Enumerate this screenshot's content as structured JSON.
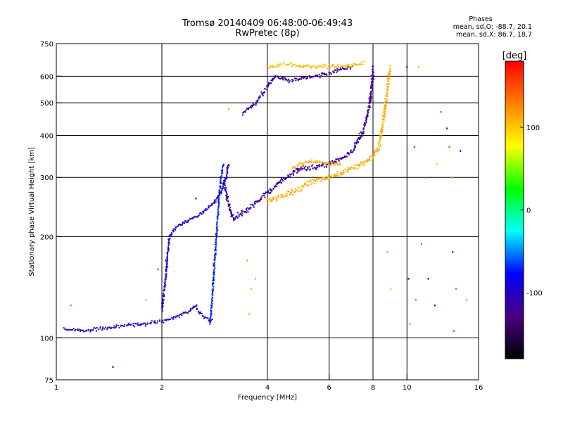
{
  "chart_data": {
    "type": "scatter",
    "title": "Tromsø 20140409 06:48:00-06:49:43",
    "subtitle": "RwPretec (8p)",
    "xlabel": "Frequency [MHz]",
    "ylabel": "Stationary phase Virtual Height [km]",
    "x_scale": "log",
    "y_scale": "log",
    "xlim": [
      1,
      16
    ],
    "ylim": [
      75,
      750
    ],
    "x_ticks": [
      1,
      2,
      4,
      6,
      8,
      10,
      16
    ],
    "y_ticks": [
      75,
      100,
      200,
      300,
      400,
      500,
      600,
      750
    ],
    "grid": true,
    "stats": {
      "header": "Phases",
      "line1": "mean, sd,O: -88.7, 20.1",
      "line2": "mean, sd,X:  86.7, 18.7"
    },
    "colorbar": {
      "label": "[deg]",
      "ticks": [
        100,
        0,
        -100
      ],
      "range": [
        -180,
        180
      ],
      "colors": [
        "#000000",
        "#4b0082",
        "#0000ff",
        "#00ffff",
        "#00ff00",
        "#ffff00",
        "#ff8000",
        "#ff0000"
      ]
    },
    "traces": [
      {
        "name": "",
        "phase": -105,
        "spread": 0.012,
        "density": 2.2,
        "points": [
          [
            1.05,
            106
          ],
          [
            1.2,
            105
          ],
          [
            1.4,
            107
          ],
          [
            1.6,
            109
          ],
          [
            1.8,
            110
          ],
          [
            2.0,
            112
          ],
          [
            2.2,
            115
          ],
          [
            2.3,
            118
          ],
          [
            2.4,
            120
          ],
          [
            2.5,
            125
          ],
          [
            2.55,
            119
          ],
          [
            2.65,
            115
          ],
          [
            2.8,
            113
          ]
        ]
      },
      {
        "name": "",
        "phase": -70,
        "spread": 0.012,
        "density": 2.5,
        "points": [
          [
            2.75,
            110
          ],
          [
            2.8,
            140
          ],
          [
            2.85,
            190
          ],
          [
            2.9,
            250
          ],
          [
            2.95,
            300
          ],
          [
            3.0,
            330
          ]
        ]
      },
      {
        "name": "",
        "phase": -95,
        "spread": 0.012,
        "density": 2.5,
        "points": [
          [
            2.0,
            120
          ],
          [
            2.05,
            150
          ],
          [
            2.1,
            200
          ],
          [
            2.2,
            215
          ],
          [
            2.4,
            225
          ],
          [
            2.6,
            235
          ],
          [
            2.8,
            250
          ],
          [
            2.95,
            270
          ],
          [
            3.05,
            300
          ],
          [
            3.1,
            330
          ]
        ]
      },
      {
        "name": "",
        "phase": -115,
        "spread": 0.018,
        "density": 3.2,
        "points": [
          [
            3.0,
            290
          ],
          [
            3.1,
            250
          ],
          [
            3.2,
            225
          ],
          [
            3.5,
            240
          ],
          [
            4.0,
            270
          ],
          [
            4.5,
            300
          ],
          [
            5.0,
            320
          ],
          [
            5.5,
            320
          ],
          [
            6.0,
            330
          ],
          [
            6.5,
            340
          ],
          [
            7.0,
            360
          ],
          [
            7.5,
            410
          ],
          [
            7.8,
            480
          ],
          [
            7.95,
            560
          ],
          [
            8.0,
            640
          ]
        ]
      },
      {
        "name": "",
        "phase": 110,
        "spread": 0.02,
        "density": 3.0,
        "points": [
          [
            4.0,
            255
          ],
          [
            4.5,
            265
          ],
          [
            5.0,
            280
          ],
          [
            5.5,
            295
          ],
          [
            6.0,
            300
          ],
          [
            6.5,
            310
          ],
          [
            7.0,
            320
          ],
          [
            7.5,
            330
          ],
          [
            8.0,
            345
          ],
          [
            8.3,
            370
          ],
          [
            8.5,
            420
          ],
          [
            8.7,
            500
          ],
          [
            8.85,
            580
          ],
          [
            8.95,
            640
          ]
        ]
      },
      {
        "name": "",
        "phase": 108,
        "spread": 0.014,
        "density": 2.5,
        "points": [
          [
            4.7,
            320
          ],
          [
            5.0,
            330
          ],
          [
            5.5,
            335
          ],
          [
            6.0,
            330
          ],
          [
            6.5,
            330
          ]
        ]
      },
      {
        "name": "",
        "phase": -115,
        "spread": 0.014,
        "density": 2.5,
        "points": [
          [
            3.4,
            465
          ],
          [
            3.7,
            500
          ],
          [
            4.0,
            560
          ],
          [
            4.2,
            600
          ],
          [
            4.6,
            580
          ],
          [
            5.0,
            590
          ],
          [
            5.5,
            600
          ],
          [
            6.0,
            610
          ],
          [
            6.5,
            630
          ],
          [
            7.0,
            640
          ]
        ]
      },
      {
        "name": "",
        "phase": 105,
        "spread": 0.014,
        "density": 2.2,
        "points": [
          [
            4.0,
            640
          ],
          [
            4.5,
            650
          ],
          [
            5.5,
            640
          ],
          [
            6.5,
            640
          ],
          [
            7.2,
            650
          ],
          [
            7.6,
            660
          ]
        ]
      }
    ],
    "outliers": [
      {
        "x": 1.45,
        "y": 82,
        "phase": -110
      },
      {
        "x": 1.95,
        "y": 160,
        "phase": 170
      },
      {
        "x": 2.05,
        "y": 170,
        "phase": -110
      },
      {
        "x": 3.5,
        "y": 170,
        "phase": 120
      },
      {
        "x": 3.6,
        "y": 140,
        "phase": 110
      },
      {
        "x": 3.55,
        "y": 118,
        "phase": 110
      },
      {
        "x": 3.7,
        "y": 150,
        "phase": 115
      },
      {
        "x": 10.0,
        "y": 640,
        "phase": -120
      },
      {
        "x": 10.1,
        "y": 150,
        "phase": -100
      },
      {
        "x": 10.2,
        "y": 110,
        "phase": 120
      },
      {
        "x": 10.6,
        "y": 130,
        "phase": 150
      },
      {
        "x": 10.8,
        "y": 640,
        "phase": 105
      },
      {
        "x": 11.2,
        "y": 300,
        "phase": 140
      },
      {
        "x": 11.5,
        "y": 150,
        "phase": -120
      },
      {
        "x": 12.0,
        "y": 125,
        "phase": -110
      },
      {
        "x": 12.5,
        "y": 470,
        "phase": 150
      },
      {
        "x": 13.0,
        "y": 420,
        "phase": -110
      },
      {
        "x": 13.2,
        "y": 370,
        "phase": 150
      },
      {
        "x": 13.4,
        "y": 300,
        "phase": 120
      },
      {
        "x": 13.5,
        "y": 180,
        "phase": -120
      },
      {
        "x": 13.6,
        "y": 105,
        "phase": 160
      },
      {
        "x": 13.8,
        "y": 140,
        "phase": 140
      },
      {
        "x": 14.2,
        "y": 360,
        "phase": -100
      },
      {
        "x": 14.8,
        "y": 130,
        "phase": 130
      },
      {
        "x": 12.2,
        "y": 330,
        "phase": 100
      },
      {
        "x": 10.5,
        "y": 370,
        "phase": 170
      },
      {
        "x": 11.0,
        "y": 190,
        "phase": 140
      },
      {
        "x": 8.8,
        "y": 180,
        "phase": 120
      },
      {
        "x": 9.0,
        "y": 140,
        "phase": 110
      },
      {
        "x": 1.1,
        "y": 125,
        "phase": 140
      },
      {
        "x": 1.8,
        "y": 130,
        "phase": 110
      },
      {
        "x": 3.1,
        "y": 480,
        "phase": 115
      },
      {
        "x": 2.5,
        "y": 260,
        "phase": -100
      }
    ]
  }
}
